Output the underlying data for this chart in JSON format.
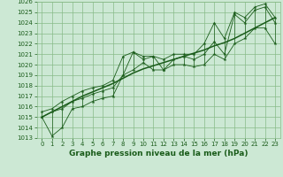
{
  "xlabel": "Graphe pression niveau de la mer (hPa)",
  "x": [
    0,
    1,
    2,
    3,
    4,
    5,
    6,
    7,
    8,
    9,
    10,
    11,
    12,
    13,
    14,
    15,
    16,
    17,
    18,
    19,
    20,
    21,
    22,
    23
  ],
  "y_main": [
    1015.0,
    1015.5,
    1015.8,
    1016.5,
    1016.8,
    1017.2,
    1017.5,
    1017.8,
    1019.0,
    1021.2,
    1020.5,
    1020.8,
    1019.5,
    1020.5,
    1020.8,
    1020.5,
    1021.0,
    1022.2,
    1021.0,
    1024.8,
    1024.0,
    1025.2,
    1025.5,
    1024.0
  ],
  "y_min": [
    1015.0,
    1013.2,
    1014.0,
    1015.8,
    1016.0,
    1016.5,
    1016.8,
    1017.0,
    1019.0,
    1019.5,
    1020.2,
    1019.5,
    1019.5,
    1020.0,
    1020.0,
    1019.8,
    1020.0,
    1021.0,
    1020.5,
    1022.0,
    1022.5,
    1023.5,
    1023.5,
    1022.0
  ],
  "y_max": [
    1015.5,
    1015.8,
    1016.5,
    1017.0,
    1017.5,
    1017.8,
    1018.0,
    1018.5,
    1020.8,
    1021.2,
    1020.8,
    1020.8,
    1020.5,
    1021.0,
    1021.0,
    1021.0,
    1022.0,
    1024.0,
    1022.5,
    1025.0,
    1024.5,
    1025.5,
    1025.8,
    1024.5
  ],
  "y_trend": [
    1015.0,
    1015.5,
    1016.0,
    1016.5,
    1017.0,
    1017.4,
    1017.8,
    1018.2,
    1018.7,
    1019.2,
    1019.6,
    1019.9,
    1020.2,
    1020.5,
    1020.8,
    1021.1,
    1021.4,
    1021.8,
    1022.1,
    1022.5,
    1023.0,
    1023.5,
    1024.0,
    1024.5
  ],
  "bg_color": "#cce8d4",
  "grid_color": "#88bb88",
  "line_color": "#1a5c1a",
  "ylim_min": 1013,
  "ylim_max": 1026,
  "yticks": [
    1013,
    1014,
    1015,
    1016,
    1017,
    1018,
    1019,
    1020,
    1021,
    1022,
    1023,
    1024,
    1025,
    1026
  ],
  "xticks": [
    0,
    1,
    2,
    3,
    4,
    5,
    6,
    7,
    8,
    9,
    10,
    11,
    12,
    13,
    14,
    15,
    16,
    17,
    18,
    19,
    20,
    21,
    22,
    23
  ],
  "marker": "*",
  "marker_size": 3.0,
  "line_width": 0.6,
  "xlabel_fontsize": 6.5,
  "tick_fontsize": 5.0
}
